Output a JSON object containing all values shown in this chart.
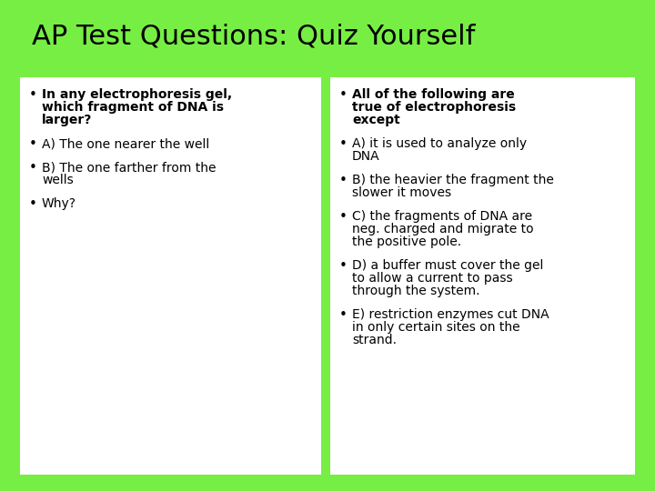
{
  "title": "AP Test Questions: Quiz Yourself",
  "bg_color": "#77ee44",
  "box_color": "#ffffff",
  "title_color": "#000000",
  "text_color": "#000000",
  "title_fontsize": 22,
  "content_fontsize": 10,
  "left_box": {
    "bullets": [
      {
        "text": "In any electrophoresis gel,\nwhich fragment of DNA is\nlarger?",
        "bold": true
      },
      {
        "text": "A) The one nearer the well",
        "bold": false
      },
      {
        "text": "B) The one farther from the\nwells",
        "bold": false
      },
      {
        "text": "Why?",
        "bold": false
      }
    ]
  },
  "right_box": {
    "bullets": [
      {
        "text": "All of the following are\ntrue of electrophoresis\nexcept",
        "bold": true
      },
      {
        "text": "A) it is used to analyze only\nDNA",
        "bold": false
      },
      {
        "text": "B) the heavier the fragment the\nslower it moves",
        "bold": false
      },
      {
        "text": "C) the fragments of DNA are\nneg. charged and migrate to\nthe positive pole.",
        "bold": false
      },
      {
        "text": "D) a buffer must cover the gel\nto allow a current to pass\nthrough the system.",
        "bold": false
      },
      {
        "text": "E) restriction enzymes cut DNA\nin only certain sites on the\nstrand.",
        "bold": false
      }
    ]
  }
}
